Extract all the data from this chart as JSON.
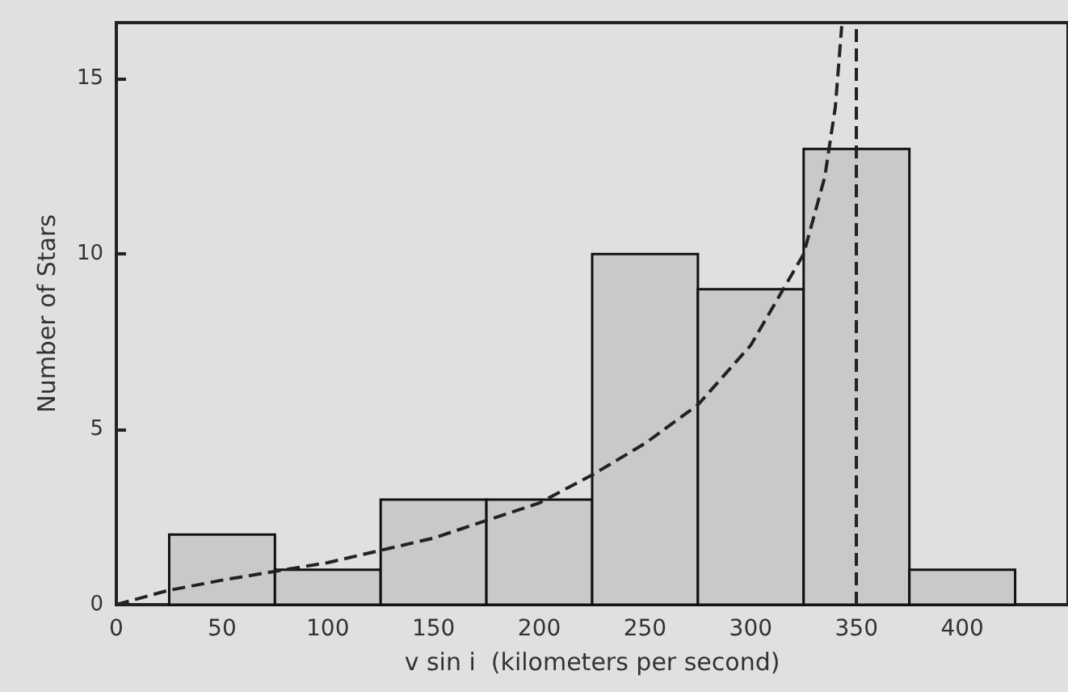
{
  "chart_data": {
    "type": "histogram",
    "xlabel": "v sin i  (kilometers per second)",
    "ylabel": "Number of Stars",
    "bins": [
      25,
      75,
      125,
      175,
      225,
      275,
      325,
      375,
      425
    ],
    "values": [
      2,
      1,
      3,
      3,
      10,
      9,
      13,
      1
    ],
    "color": "#c8c9c8",
    "series": [
      {
        "type": "line",
        "color": "#222222",
        "line_style": "dashed",
        "marker": "none",
        "x": [
          0,
          24,
          50,
          100,
          150,
          200,
          225,
          250,
          275,
          300,
          325,
          335,
          340,
          343
        ],
        "values": [
          0,
          0.4,
          0.7,
          1.2,
          1.9,
          2.9,
          3.7,
          4.6,
          5.7,
          7.4,
          10,
          12.2,
          14.2,
          16.5
        ]
      }
    ],
    "ref_lines": [
      {
        "axis": "x",
        "value": 350,
        "color": "#222222",
        "line_style": "dashed"
      }
    ],
    "xlim": [
      0,
      450
    ],
    "ylim": [
      0,
      16.6
    ],
    "xticks": [
      0,
      50,
      100,
      150,
      200,
      250,
      300,
      350,
      400
    ],
    "yticks": [
      0,
      5,
      10,
      15
    ]
  }
}
